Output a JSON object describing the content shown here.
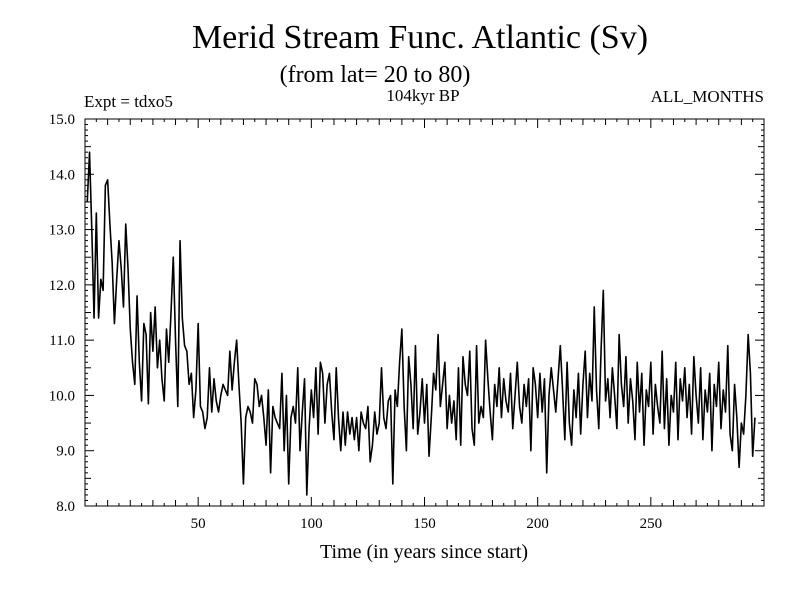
{
  "title": "Merid Stream Func. Atlantic (Sv)",
  "subtitle": "(from lat= 20 to 80)",
  "expt_label": "Expt = tdxo5",
  "period_label": "104kyr BP",
  "months_label": "ALL_MONTHS",
  "chart_data": {
    "type": "line",
    "xlabel": "Time (in years since start)",
    "ylabel": "",
    "xlim": [
      0,
      300
    ],
    "ylim": [
      8.0,
      15.0
    ],
    "x_ticks": [
      50,
      100,
      150,
      200,
      250
    ],
    "y_ticks": [
      "8.0",
      "9.0",
      "10.0",
      "11.0",
      "12.0",
      "13.0",
      "14.0",
      "15.0"
    ],
    "grid": false,
    "series": [
      {
        "name": "",
        "color": "#000000",
        "x_start": 1,
        "x_step": 1,
        "values": [
          13.5,
          14.4,
          13.0,
          11.4,
          13.3,
          11.4,
          12.1,
          11.9,
          13.8,
          13.9,
          13.1,
          12.4,
          11.3,
          12.1,
          12.8,
          12.3,
          11.6,
          13.1,
          12.3,
          11.2,
          10.6,
          10.2,
          11.8,
          10.6,
          9.9,
          11.3,
          11.1,
          9.85,
          11.5,
          10.8,
          11.6,
          10.5,
          11.0,
          10.3,
          9.9,
          11.2,
          10.6,
          11.5,
          12.5,
          11.0,
          9.8,
          12.8,
          11.4,
          10.9,
          10.8,
          10.2,
          10.4,
          9.6,
          10.1,
          11.3,
          9.8,
          9.7,
          9.4,
          9.6,
          10.5,
          9.7,
          10.3,
          9.9,
          9.7,
          10.0,
          10.2,
          10.1,
          10.0,
          10.8,
          10.1,
          10.6,
          11.0,
          10.2,
          9.5,
          8.4,
          9.6,
          9.8,
          9.7,
          9.5,
          10.3,
          10.2,
          9.8,
          10.0,
          9.6,
          9.1,
          10.1,
          8.6,
          9.8,
          9.6,
          9.5,
          9.4,
          10.4,
          9.0,
          10.0,
          8.4,
          9.6,
          9.8,
          9.5,
          10.5,
          9.0,
          9.7,
          10.3,
          8.2,
          9.4,
          10.1,
          9.6,
          10.5,
          9.3,
          10.6,
          10.4,
          9.5,
          10.2,
          10.4,
          9.7,
          9.2,
          10.5,
          9.6,
          9.0,
          9.7,
          9.1,
          9.7,
          9.3,
          9.6,
          9.2,
          9.6,
          9.0,
          9.7,
          9.5,
          9.4,
          9.8,
          8.8,
          9.1,
          9.7,
          9.3,
          9.5,
          10.5,
          9.6,
          9.4,
          9.9,
          10.0,
          8.4,
          10.1,
          9.8,
          10.6,
          11.2,
          9.8,
          9.0,
          10.7,
          10.2,
          9.4,
          10.9,
          9.3,
          9.7,
          10.3,
          9.5,
          10.2,
          8.9,
          9.6,
          10.4,
          10.1,
          11.1,
          9.8,
          10.2,
          10.6,
          9.4,
          10.0,
          9.5,
          9.9,
          9.2,
          10.5,
          9.1,
          10.7,
          10.2,
          10.0,
          10.8,
          9.4,
          9.1,
          10.9,
          9.5,
          9.8,
          9.6,
          11.0,
          10.3,
          9.7,
          9.2,
          10.2,
          9.8,
          10.5,
          9.6,
          10.3,
          9.9,
          9.7,
          10.4,
          9.4,
          10.0,
          10.6,
          9.8,
          9.5,
          10.2,
          9.8,
          10.3,
          9.0,
          10.5,
          10.2,
          9.6,
          10.4,
          9.7,
          10.3,
          8.6,
          10.0,
          10.5,
          10.1,
          9.7,
          10.3,
          10.9,
          10.1,
          9.2,
          10.6,
          9.5,
          9.1,
          10.1,
          9.6,
          10.4,
          9.3,
          10.2,
          10.8,
          9.6,
          10.4,
          9.9,
          11.6,
          10.1,
          9.4,
          10.8,
          11.9,
          9.9,
          10.3,
          9.6,
          10.5,
          10.0,
          9.4,
          11.1,
          10.2,
          9.8,
          10.7,
          9.5,
          10.3,
          9.9,
          9.2,
          10.6,
          9.7,
          10.4,
          9.1,
          10.1,
          9.8,
          10.6,
          9.3,
          10.2,
          9.8,
          9.5,
          10.8,
          9.4,
          10.3,
          9.1,
          10.0,
          9.7,
          10.6,
          9.2,
          10.3,
          9.9,
          10.5,
          9.6,
          10.2,
          9.3,
          10.7,
          10.0,
          9.5,
          10.5,
          9.2,
          10.1,
          9.7,
          10.4,
          9.0,
          10.2,
          9.8,
          10.6,
          9.4,
          10.1,
          9.7,
          10.9,
          9.3,
          9.0,
          10.2,
          9.6,
          8.7,
          9.5,
          9.3,
          10.0,
          11.1,
          10.4,
          8.9,
          9.6
        ]
      }
    ]
  }
}
